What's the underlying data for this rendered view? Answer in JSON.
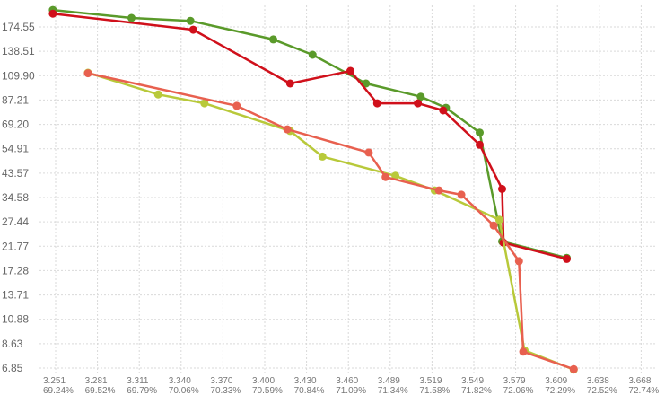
{
  "chart_data": {
    "type": "line",
    "title": "",
    "xlabel": "",
    "ylabel": "",
    "grid": true,
    "y_ticks": [
      "6.85",
      "8.63",
      "10.88",
      "13.71",
      "17.28",
      "21.77",
      "27.44",
      "34.58",
      "43.57",
      "54.91",
      "69.20",
      "87.21",
      "109.90",
      "138.51",
      "174.55"
    ],
    "x_ticks": [
      {
        "top": "3.251",
        "bottom": "69.24%"
      },
      {
        "top": "3.281",
        "bottom": "69.52%"
      },
      {
        "top": "3.311",
        "bottom": "69.79%"
      },
      {
        "top": "3.340",
        "bottom": "70.06%"
      },
      {
        "top": "3.370",
        "bottom": "70.33%"
      },
      {
        "top": "3.400",
        "bottom": "70.59%"
      },
      {
        "top": "3.430",
        "bottom": "70.84%"
      },
      {
        "top": "3.460",
        "bottom": "71.09%"
      },
      {
        "top": "3.489",
        "bottom": "71.34%"
      },
      {
        "top": "3.519",
        "bottom": "71.58%"
      },
      {
        "top": "3.549",
        "bottom": "71.82%"
      },
      {
        "top": "3.579",
        "bottom": "72.06%"
      },
      {
        "top": "3.609",
        "bottom": "72.29%"
      },
      {
        "top": "3.638",
        "bottom": "72.52%"
      },
      {
        "top": "3.668",
        "bottom": "72.74%"
      }
    ],
    "xlim": [
      3.251,
      3.668
    ],
    "ylim": [
      6.85,
      174.55
    ],
    "y_scale": "log",
    "series": [
      {
        "color": "#5a9a2a",
        "points": [
          [
            3.249,
            205.0
          ],
          [
            3.305,
            190.0
          ],
          [
            3.347,
            185.0
          ],
          [
            3.406,
            155.0
          ],
          [
            3.434,
            134.0
          ],
          [
            3.472,
            102.0
          ],
          [
            3.511,
            90.0
          ],
          [
            3.529,
            81.0
          ],
          [
            3.553,
            64.0
          ],
          [
            3.569,
            22.8
          ],
          [
            3.615,
            19.5
          ]
        ]
      },
      {
        "color": "#d0101b",
        "points": [
          [
            3.249,
            198.0
          ],
          [
            3.349,
            170.0
          ],
          [
            3.418,
            102.0
          ],
          [
            3.461,
            115.0
          ],
          [
            3.48,
            84.5
          ],
          [
            3.509,
            84.5
          ],
          [
            3.527,
            79.0
          ],
          [
            3.553,
            57.0
          ],
          [
            3.569,
            37.5
          ],
          [
            3.57,
            22.5
          ],
          [
            3.615,
            19.3
          ]
        ]
      },
      {
        "color": "#b8c93a",
        "points": [
          [
            3.274,
            113.0
          ],
          [
            3.324,
            92.0
          ],
          [
            3.357,
            84.5
          ],
          [
            3.418,
            65.0
          ],
          [
            3.441,
            51.0
          ],
          [
            3.493,
            42.5
          ],
          [
            3.521,
            37.0
          ],
          [
            3.567,
            28.0
          ],
          [
            3.585,
            8.1
          ],
          [
            3.62,
            6.75
          ]
        ]
      },
      {
        "color": "#e8604f",
        "points": [
          [
            3.274,
            112.5
          ],
          [
            3.38,
            82.5
          ],
          [
            3.416,
            66.0
          ],
          [
            3.474,
            53.0
          ],
          [
            3.486,
            42.0
          ],
          [
            3.524,
            37.0
          ],
          [
            3.54,
            35.5
          ],
          [
            3.563,
            26.5
          ],
          [
            3.581,
            18.9
          ],
          [
            3.584,
            8.0
          ],
          [
            3.62,
            6.78
          ]
        ]
      }
    ]
  }
}
